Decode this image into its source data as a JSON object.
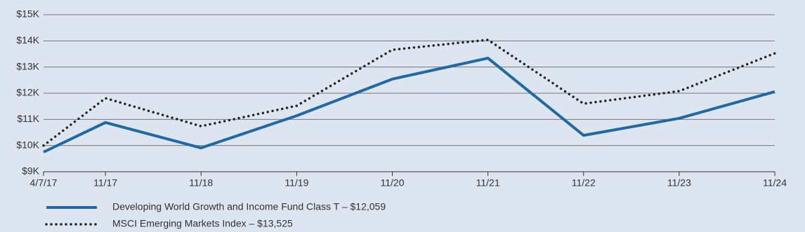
{
  "chart_data": {
    "type": "line",
    "categories": [
      "4/7/17",
      "11/17",
      "11/18",
      "11/19",
      "11/20",
      "11/21",
      "11/22",
      "11/23",
      "11/24"
    ],
    "series": [
      {
        "name": "Developing World Growth and Income Fund Class T – $12,059",
        "color": "#1f69a4",
        "dash": "solid",
        "values": [
          9750,
          10880,
          9910,
          11140,
          12540,
          13340,
          10390,
          11040,
          12059
        ]
      },
      {
        "name": "MSCI Emerging Markets Index – $13,525",
        "color": "#222222",
        "dash": "dotted",
        "values": [
          10000,
          11810,
          10740,
          11520,
          13660,
          14040,
          11600,
          12080,
          13525
        ]
      }
    ],
    "ylim": [
      9000,
      15000
    ],
    "yticks": [
      {
        "value": 9000,
        "label": "$9K"
      },
      {
        "value": 10000,
        "label": "$10K"
      },
      {
        "value": 11000,
        "label": "$11K"
      },
      {
        "value": 12000,
        "label": "$12K"
      },
      {
        "value": 13000,
        "label": "$13K"
      },
      {
        "value": 14000,
        "label": "$14K"
      },
      {
        "value": 15000,
        "label": "$15K"
      }
    ],
    "grid": true
  }
}
